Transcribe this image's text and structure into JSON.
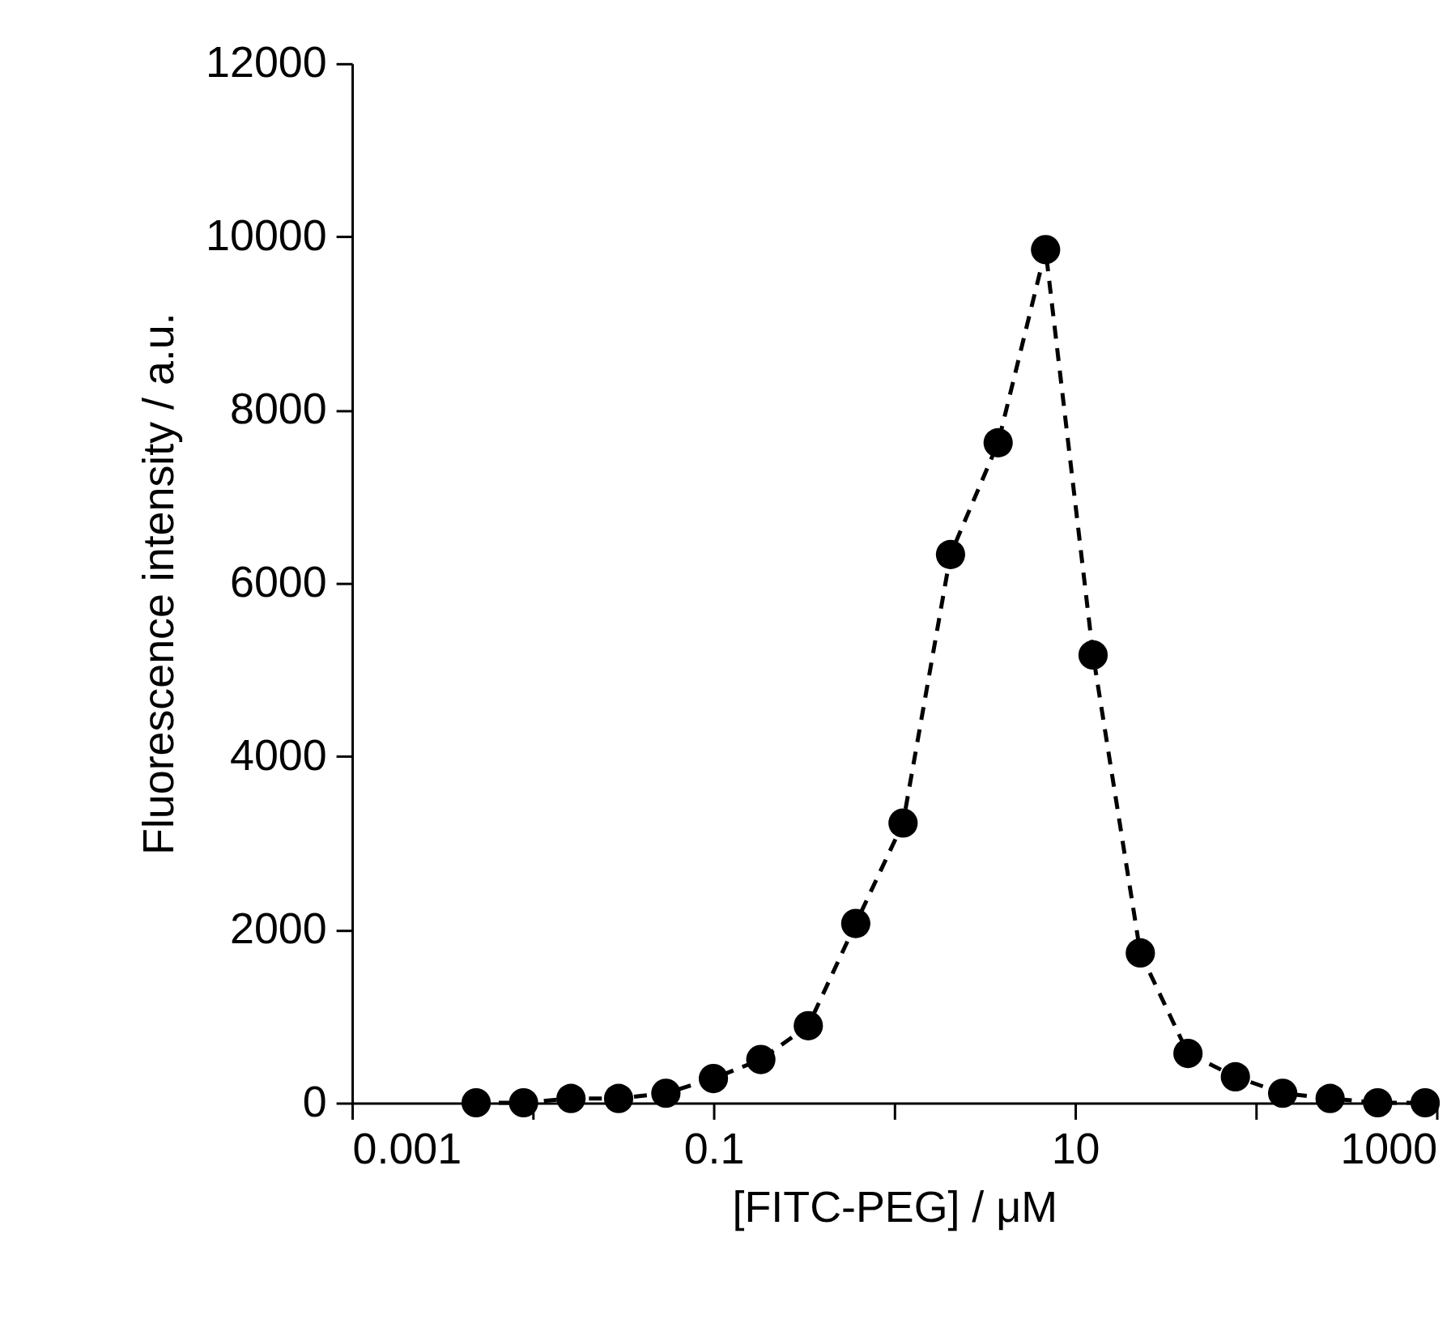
{
  "chart_data": {
    "type": "line",
    "xlabel": "[FITC-PEG] / μM",
    "ylabel": "Fluorescence intensity / a.u.",
    "log": "x",
    "xlim": [
      0.001,
      1000
    ],
    "ylim": [
      0,
      12000
    ],
    "xticks": [
      {
        "value": 0.001,
        "label": "0.001"
      },
      {
        "value": 0.01,
        "label": null
      },
      {
        "value": 0.1,
        "label": "0.1"
      },
      {
        "value": 1,
        "label": null
      },
      10,
      {
        "value": 100,
        "label": null
      },
      1000
    ],
    "yticks": [
      0,
      2000,
      4000,
      6000,
      8000,
      10000,
      12000
    ],
    "grid": false,
    "marker": "circle",
    "line_style": "dashed",
    "series": [
      {
        "color": "#000000",
        "x": [
          0.00487,
          0.00891,
          0.0163,
          0.0299,
          0.0546,
          0.1,
          0.183,
          0.335,
          0.613,
          1.12,
          2.05,
          3.76,
          6.88,
          12.6,
          23.0,
          42.2,
          77.2,
          141,
          258,
          473,
          866
        ],
        "values": [
          0,
          0,
          50,
          50,
          110,
          280,
          500,
          890,
          2070,
          3230,
          6330,
          7620,
          9850,
          5170,
          1730,
          570,
          300,
          110,
          50,
          0,
          0
        ]
      }
    ]
  }
}
